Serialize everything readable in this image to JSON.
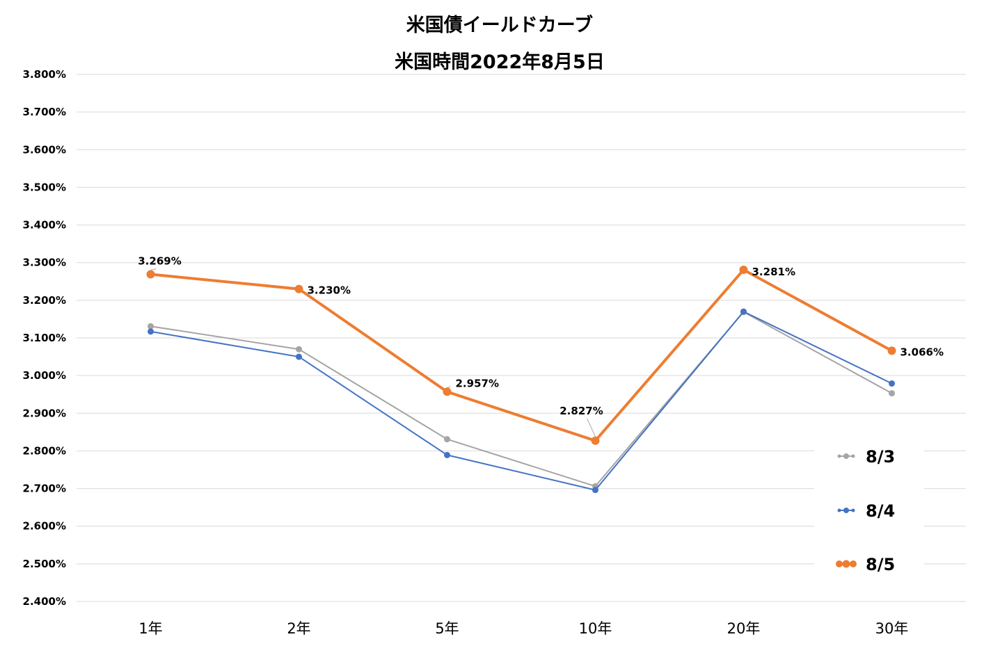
{
  "chart_data": {
    "type": "line",
    "title": "米国債イールドカーブ",
    "subtitle": "米国時間2022年8月5日",
    "categories": [
      "1年",
      "2年",
      "5年",
      "10年",
      "20年",
      "30年"
    ],
    "ylim": [
      2.4,
      3.8
    ],
    "yticks": [
      "3.800%",
      "3.700%",
      "3.600%",
      "3.500%",
      "3.400%",
      "3.300%",
      "3.200%",
      "3.100%",
      "3.000%",
      "2.900%",
      "2.800%",
      "2.700%",
      "2.600%",
      "2.500%",
      "2.400%"
    ],
    "grid": true,
    "legend_position": "bottom-right",
    "series": [
      {
        "name": "8/3",
        "values": [
          3.131,
          3.07,
          2.831,
          2.706,
          3.169,
          2.953
        ],
        "color": "#a5a5a5"
      },
      {
        "name": "8/4",
        "values": [
          3.117,
          3.05,
          2.789,
          2.696,
          3.17,
          2.979
        ],
        "color": "#4472c4"
      },
      {
        "name": "8/5",
        "values": [
          3.269,
          3.23,
          2.957,
          2.827,
          3.281,
          3.066
        ],
        "color": "#ed7d31"
      }
    ],
    "data_labels": [
      {
        "series": "8/5",
        "index": 0,
        "text": "3.269%"
      },
      {
        "series": "8/5",
        "index": 1,
        "text": "3.230%"
      },
      {
        "series": "8/5",
        "index": 2,
        "text": "2.957%"
      },
      {
        "series": "8/5",
        "index": 3,
        "text": "2.827%"
      },
      {
        "series": "8/5",
        "index": 4,
        "text": "3.281%"
      },
      {
        "series": "8/5",
        "index": 5,
        "text": "3.066%"
      }
    ]
  }
}
